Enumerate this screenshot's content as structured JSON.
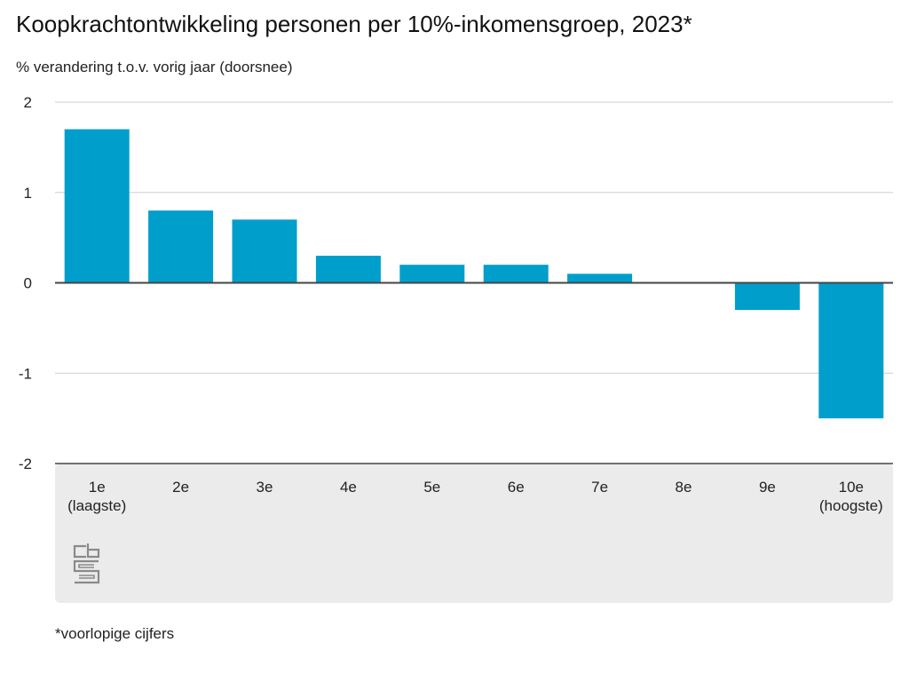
{
  "header": {
    "title": "Koopkrachtontwikkeling personen per 10%-inkomensgroep, 2023*",
    "subtitle": "% verandering t.o.v. vorig jaar (doorsnee)"
  },
  "footnote": "*voorlopige cijfers",
  "logo": {
    "icon": "cbs-logo-icon",
    "text": "cbs"
  },
  "colors": {
    "bar": "#009fcb",
    "grid": "#cfcfcf",
    "zero_line": "#444444",
    "panel": "#ebebeb",
    "logo": "#8a8a8a"
  },
  "chart_data": {
    "type": "bar",
    "categories": [
      [
        "1e",
        "(laagste)"
      ],
      [
        "2e"
      ],
      [
        "3e"
      ],
      [
        "4e"
      ],
      [
        "5e"
      ],
      [
        "6e"
      ],
      [
        "7e"
      ],
      [
        "8e"
      ],
      [
        "9e"
      ],
      [
        "10e",
        "(hoogste)"
      ]
    ],
    "values": [
      1.7,
      0.8,
      0.7,
      0.3,
      0.2,
      0.2,
      0.1,
      0.0,
      -0.3,
      -1.5
    ],
    "title": "Koopkrachtontwikkeling personen per 10%-inkomensgroep, 2023*",
    "ylabel": "% verandering t.o.v. vorig jaar (doorsnee)",
    "xlabel": "",
    "ylim": [
      -2,
      2
    ],
    "yticks": [
      "2",
      "1",
      "0",
      "-1",
      "-2"
    ],
    "ytick_values": [
      2,
      1,
      0,
      -1,
      -2
    ],
    "grid": true,
    "legend": "none"
  }
}
